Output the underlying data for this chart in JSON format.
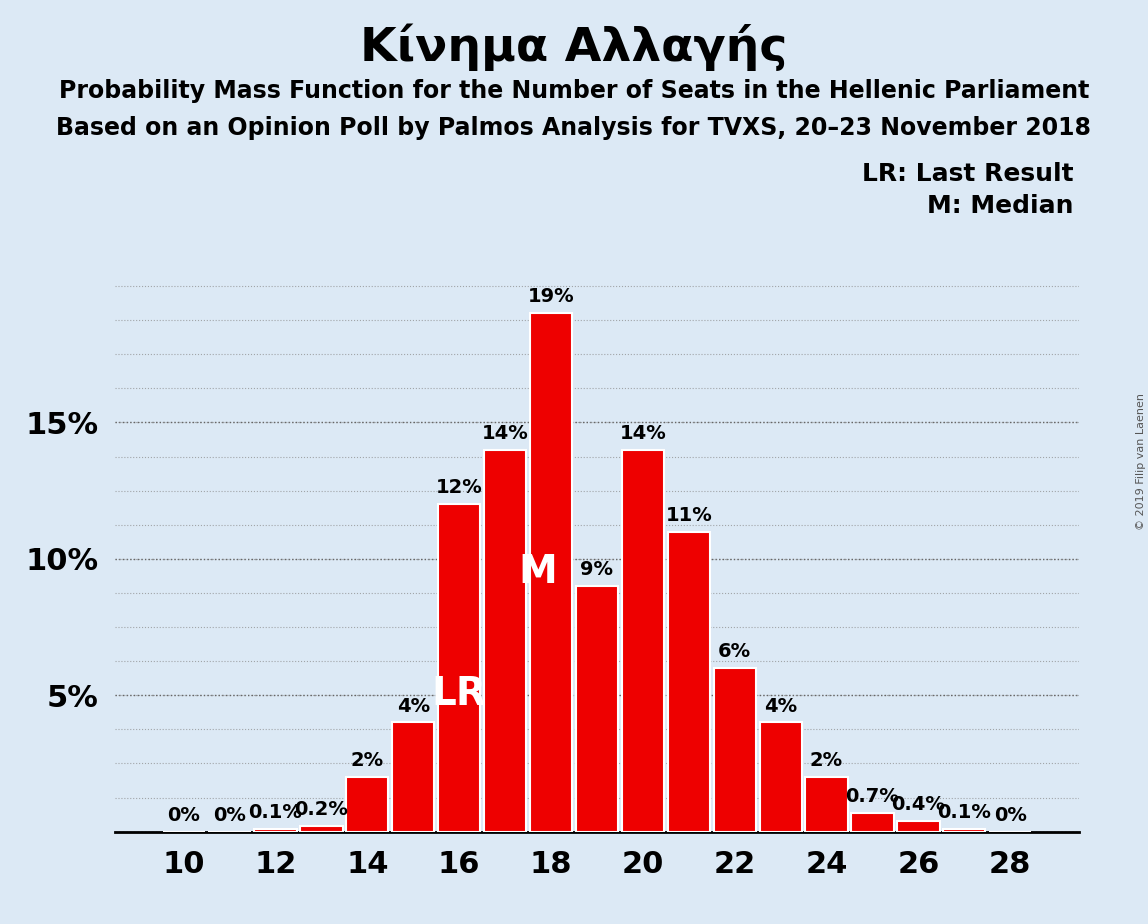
{
  "title": "Κίνημα Αλλαγής",
  "subtitle1": "Probability Mass Function for the Number of Seats in the Hellenic Parliament",
  "subtitle2": "Based on an Opinion Poll by Palmos Analysis for TVXS, 20–23 November 2018",
  "copyright": "© 2019 Filip van Laenen",
  "legend_lr": "LR: Last Result",
  "legend_m": "M: Median",
  "background_color": "#dce9f5",
  "bar_color": "#ee0000",
  "bar_edge_color": "#ffffff",
  "categories": [
    10,
    11,
    12,
    13,
    14,
    15,
    16,
    17,
    18,
    19,
    20,
    21,
    22,
    23,
    24,
    25,
    26,
    27,
    28
  ],
  "values": [
    0.0,
    0.0,
    0.1,
    0.2,
    2.0,
    4.0,
    12.0,
    14.0,
    19.0,
    9.0,
    14.0,
    11.0,
    6.0,
    4.0,
    2.0,
    0.7,
    0.4,
    0.1,
    0.0
  ],
  "labels": [
    "0%",
    "0%",
    "0.1%",
    "0.2%",
    "2%",
    "4%",
    "12%",
    "14%",
    "19%",
    "9%",
    "14%",
    "11%",
    "6%",
    "4%",
    "2%",
    "0.7%",
    "0.4%",
    "0.1%",
    "0%"
  ],
  "lr_seat": 16,
  "median_seat": 18,
  "ylim": [
    0,
    21
  ],
  "yticks": [
    0,
    5,
    10,
    15
  ],
  "ytick_labels": [
    "",
    "5%",
    "10%",
    "15%"
  ],
  "title_fontsize": 34,
  "subtitle_fontsize": 17,
  "bar_label_fontsize": 14,
  "axis_label_fontsize": 22,
  "lr_label_fontsize": 28,
  "m_label_fontsize": 28,
  "legend_fontsize": 18
}
